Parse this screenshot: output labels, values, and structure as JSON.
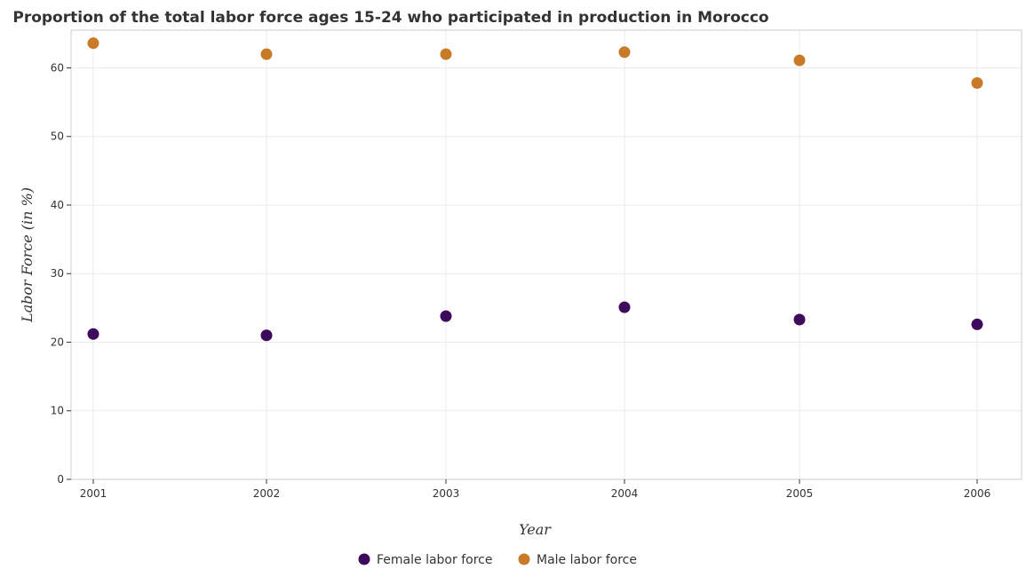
{
  "chart_data": {
    "type": "scatter",
    "title": "Proportion of the total labor force ages 15-24 who participated in production in Morocco",
    "xlabel": "Year",
    "ylabel": "Labor Force (in %)",
    "categories": [
      "2001",
      "2002",
      "2003",
      "2004",
      "2005",
      "2006"
    ],
    "ylim": [
      0,
      65.5
    ],
    "yticks": [
      0,
      10,
      20,
      30,
      40,
      50,
      60
    ],
    "grid": true,
    "legend_position": "bottom-center",
    "series": [
      {
        "name": "Female labor force",
        "color": "#3d0a5c",
        "values": [
          21.2,
          21.0,
          23.8,
          25.1,
          23.3,
          22.6
        ]
      },
      {
        "name": "Male labor force",
        "color": "#c97a26",
        "values": [
          63.6,
          62.0,
          62.0,
          62.3,
          61.1,
          57.8
        ]
      }
    ]
  }
}
